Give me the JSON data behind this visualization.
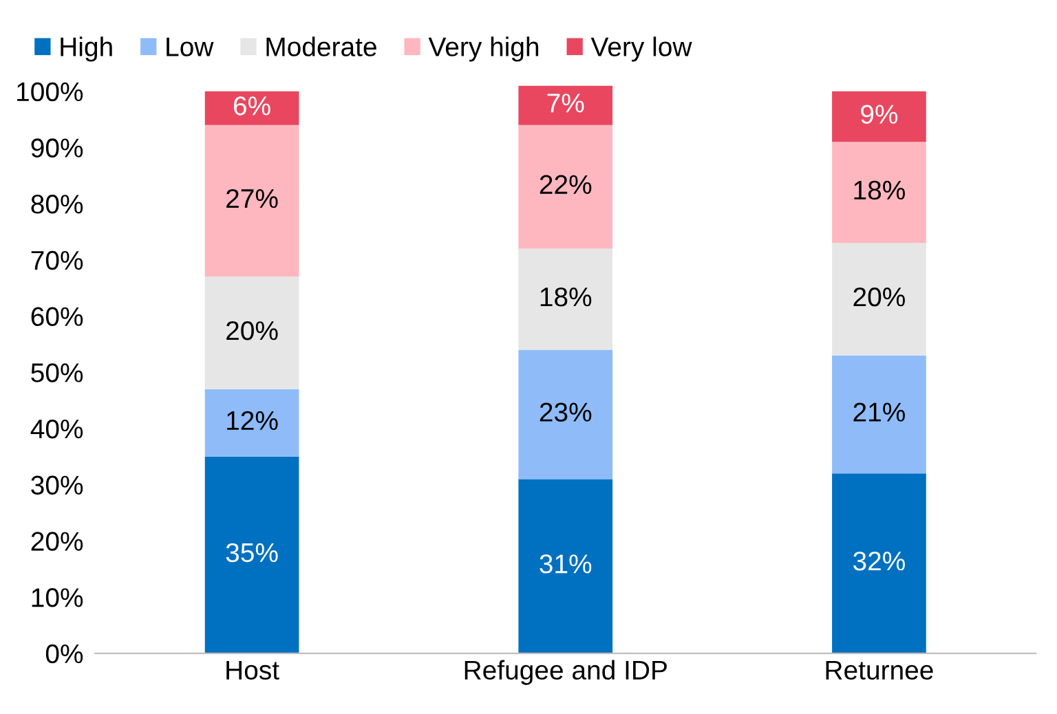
{
  "chart_data": {
    "type": "bar",
    "stacked": true,
    "categories": [
      "Host",
      "Refugee and IDP",
      "Returnee"
    ],
    "series": [
      {
        "name": "High",
        "color": "#0070c0",
        "values": [
          35,
          31,
          32
        ],
        "value_labels": [
          "35%",
          "31%",
          "32%"
        ]
      },
      {
        "name": "Low",
        "color": "#8fbcf9",
        "values": [
          12,
          23,
          21
        ],
        "value_labels": [
          "12%",
          "23%",
          "21%"
        ]
      },
      {
        "name": "Moderate",
        "color": "#e6e6e6",
        "values": [
          20,
          18,
          20
        ],
        "value_labels": [
          "20%",
          "18%",
          "20%"
        ]
      },
      {
        "name": "Very high",
        "color": "#ffb7bf",
        "values": [
          27,
          22,
          18
        ],
        "value_labels": [
          "27%",
          "22%",
          "18%"
        ]
      },
      {
        "name": "Very low",
        "color": "#e8475f",
        "values": [
          6,
          7,
          9
        ],
        "value_labels": [
          "6%",
          "7%",
          "9%"
        ]
      }
    ],
    "ylim": [
      0,
      101
    ],
    "yticks": [
      {
        "value": 0,
        "label": "0%"
      },
      {
        "value": 10,
        "label": "10%"
      },
      {
        "value": 20,
        "label": "20%"
      },
      {
        "value": 30,
        "label": "30%"
      },
      {
        "value": 40,
        "label": "40%"
      },
      {
        "value": 50,
        "label": "50%"
      },
      {
        "value": 60,
        "label": "60%"
      },
      {
        "value": 70,
        "label": "70%"
      },
      {
        "value": 80,
        "label": "80%"
      },
      {
        "value": 90,
        "label": "90%"
      },
      {
        "value": 100,
        "label": "100%"
      }
    ],
    "grid": false,
    "legend": "top"
  }
}
